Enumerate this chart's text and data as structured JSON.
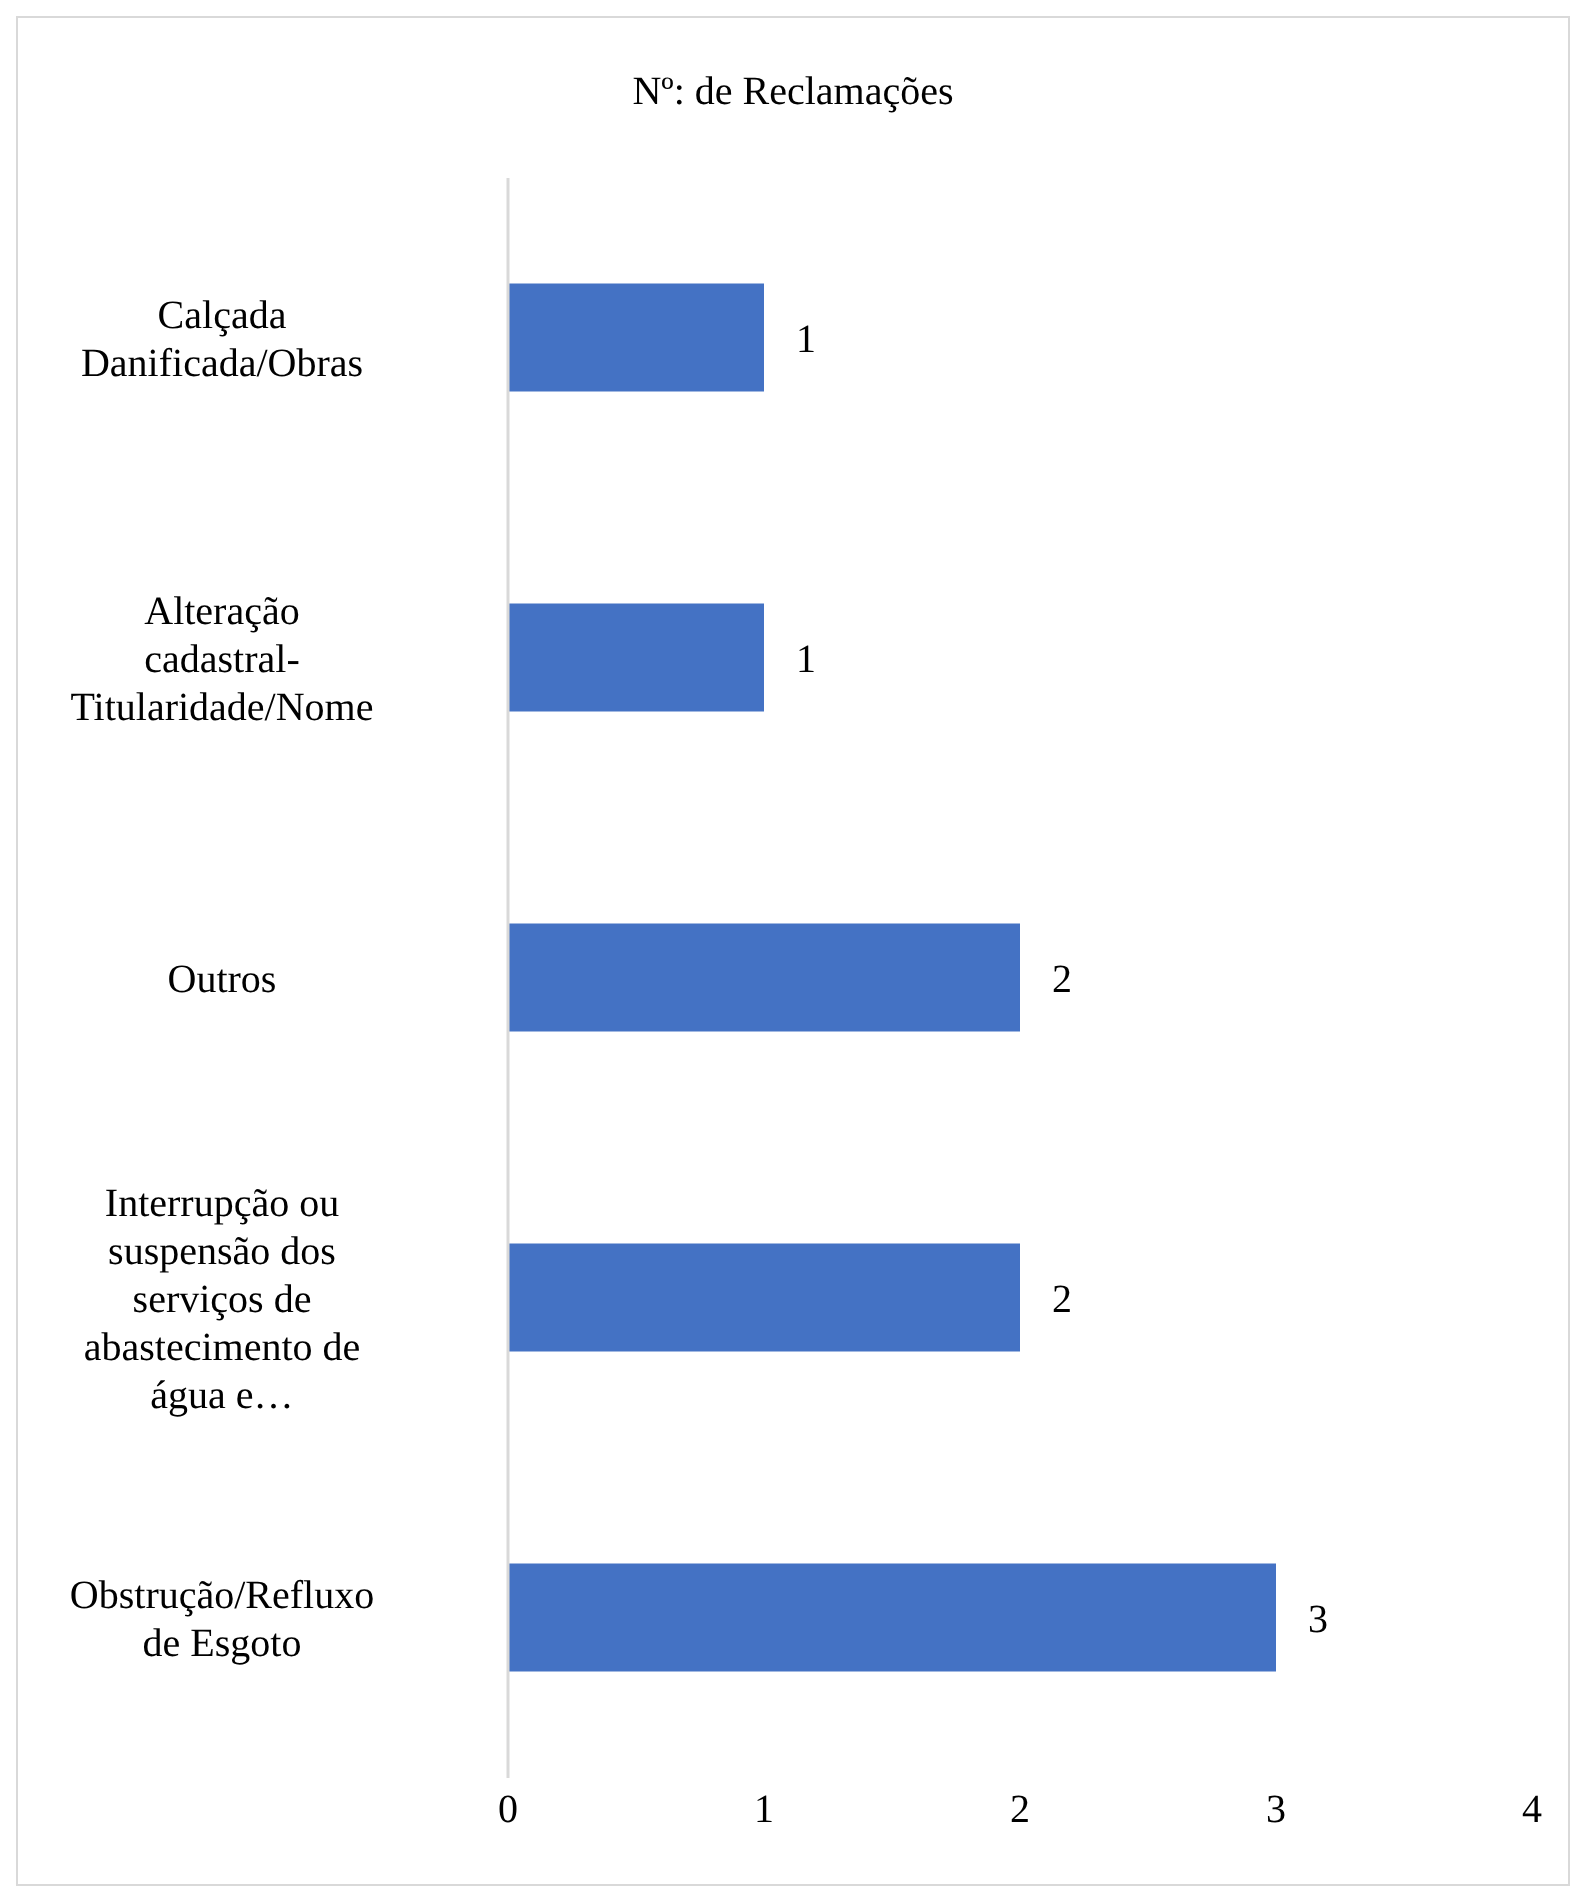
{
  "chart_data": {
    "type": "bar",
    "orientation": "horizontal",
    "title": "Nº: de Reclamações",
    "categories": [
      "Calçada Danificada/Obras",
      "Alteração cadastral-Titularidade/Nome",
      "Outros",
      "Interrupção ou suspensão dos serviços de abastecimento de água e…",
      "Obstrução/Refluxo de Esgoto"
    ],
    "values": [
      1,
      1,
      2,
      2,
      3
    ],
    "color": "#4472c4",
    "xlim": [
      0,
      4
    ],
    "xticks": [
      0,
      1,
      2,
      3,
      4
    ],
    "data_labels": true
  }
}
